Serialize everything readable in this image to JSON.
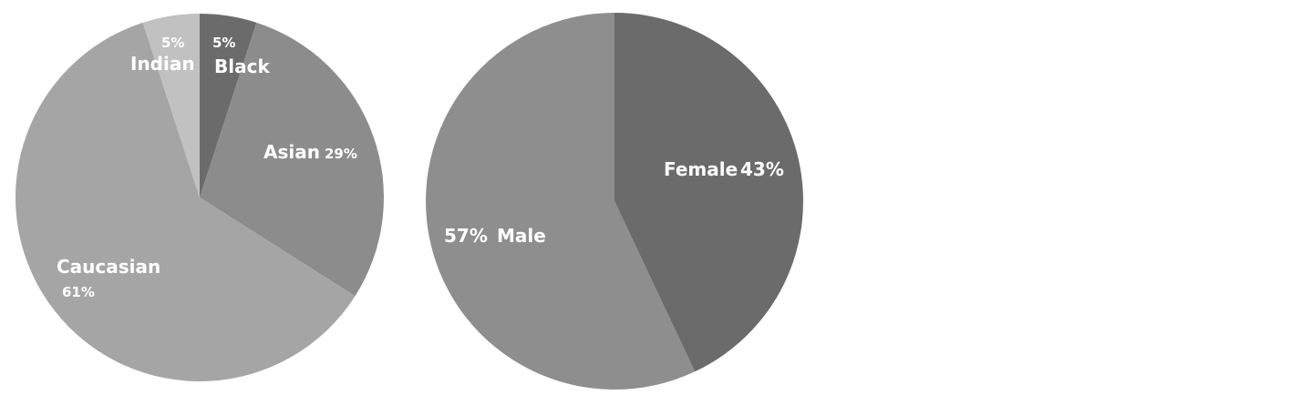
{
  "chart_data": [
    {
      "type": "pie",
      "title": "",
      "slices": [
        {
          "label": "Black",
          "value": 5,
          "value_label": "5%",
          "color": "#6b6b6b"
        },
        {
          "label": "Asian",
          "value": 29,
          "value_label": "29%",
          "color": "#8c8c8c"
        },
        {
          "label": "Caucasian",
          "value": 61,
          "value_label": "61%",
          "color": "#a5a5a5"
        },
        {
          "label": "Indian",
          "value": 5,
          "value_label": "5%",
          "color": "#c1c1c1"
        }
      ],
      "start": "12 o'clock, clockwise",
      "legend": "none (labels on slices)"
    },
    {
      "type": "pie",
      "title": "",
      "slices": [
        {
          "label": "Female",
          "value": 43,
          "value_label": "43%",
          "color": "#6b6b6b"
        },
        {
          "label": "Male",
          "value": 57,
          "value_label": "57%",
          "color": "#8e8e8e"
        }
      ],
      "start": "12 o'clock, clockwise",
      "legend": "none (labels on slices)"
    }
  ]
}
